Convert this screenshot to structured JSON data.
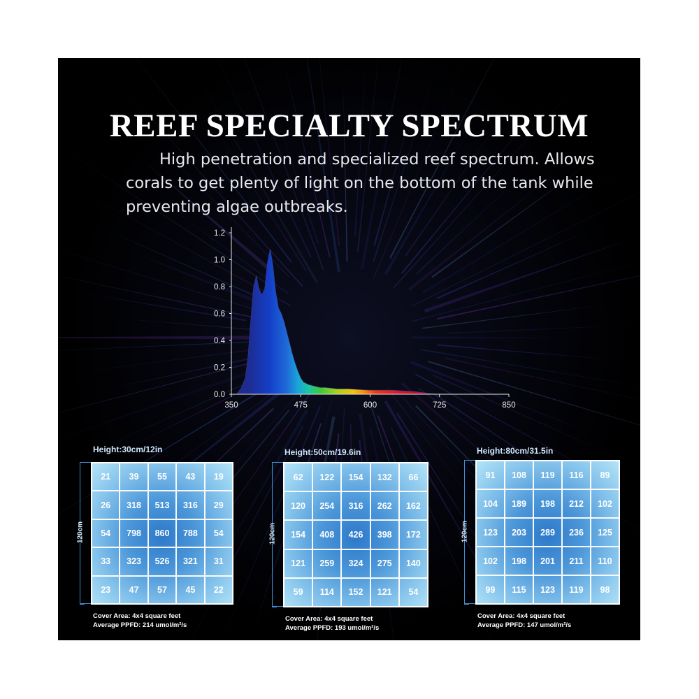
{
  "title": "REEF SPECIALTY SPECTRUM",
  "subtitle": "High penetration and specialized reef spectrum. Allows corals to get plenty of light on the bottom of the tank while preventing algae outbreaks.",
  "chart_data": {
    "type": "area",
    "title": "",
    "xlabel": "",
    "ylabel": "",
    "xlim": [
      350,
      850
    ],
    "ylim": [
      0.0,
      1.2
    ],
    "x_ticks": [
      "350",
      "475",
      "600",
      "725",
      "850"
    ],
    "y_ticks": [
      "0.0",
      "0.2",
      "0.4",
      "0.6",
      "0.8",
      "1.0",
      "1.2"
    ],
    "grid": false,
    "series": [
      {
        "x": [
          360,
          368,
          375,
          380,
          385,
          390,
          395,
          400,
          405,
          410,
          415,
          420,
          425,
          430,
          435,
          440,
          445,
          450,
          455,
          460,
          465,
          470,
          475,
          480,
          485,
          490,
          500,
          510,
          520,
          540,
          560,
          580,
          600,
          620,
          640,
          660,
          680,
          700,
          720
        ],
        "y": [
          0.0,
          0.05,
          0.12,
          0.28,
          0.55,
          0.8,
          0.88,
          0.78,
          0.74,
          0.78,
          0.98,
          1.08,
          0.95,
          0.76,
          0.64,
          0.6,
          0.54,
          0.46,
          0.38,
          0.3,
          0.23,
          0.17,
          0.12,
          0.09,
          0.08,
          0.07,
          0.06,
          0.05,
          0.05,
          0.04,
          0.04,
          0.035,
          0.03,
          0.03,
          0.03,
          0.025,
          0.02,
          0.01,
          0.0
        ]
      }
    ]
  },
  "tables": [
    {
      "height_label": "Height:30cm/12in",
      "dimension_label": "120cm",
      "cover_area": "Cover Area: 4x4 square feet",
      "average_ppfd": "Average PPFD: 214 umol/m²/s",
      "values": [
        [
          "21",
          "39",
          "55",
          "43",
          "19"
        ],
        [
          "26",
          "318",
          "513",
          "316",
          "29"
        ],
        [
          "54",
          "798",
          "860",
          "788",
          "54"
        ],
        [
          "33",
          "323",
          "526",
          "321",
          "31"
        ],
        [
          "23",
          "47",
          "57",
          "45",
          "22"
        ]
      ]
    },
    {
      "height_label": "Height:50cm/19.6in",
      "dimension_label": "120cm",
      "cover_area": "Cover Area: 4x4 square feet",
      "average_ppfd": "Average PPFD: 193 umol/m²/s",
      "values": [
        [
          "62",
          "122",
          "154",
          "132",
          "66"
        ],
        [
          "120",
          "254",
          "316",
          "262",
          "162"
        ],
        [
          "154",
          "408",
          "426",
          "398",
          "172"
        ],
        [
          "121",
          "259",
          "324",
          "275",
          "140"
        ],
        [
          "59",
          "114",
          "152",
          "121",
          "54"
        ]
      ]
    },
    {
      "height_label": "Height:80cm/31.5in",
      "dimension_label": "120cm",
      "cover_area": "Cover Area: 4x4 square feet",
      "average_ppfd": "Average PPFD: 147 umol/m²/s",
      "values": [
        [
          "91",
          "108",
          "119",
          "116",
          "89"
        ],
        [
          "104",
          "189",
          "198",
          "212",
          "102"
        ],
        [
          "123",
          "203",
          "289",
          "236",
          "125"
        ],
        [
          "102",
          "198",
          "201",
          "211",
          "110"
        ],
        [
          "99",
          "115",
          "123",
          "119",
          "98"
        ]
      ]
    }
  ]
}
